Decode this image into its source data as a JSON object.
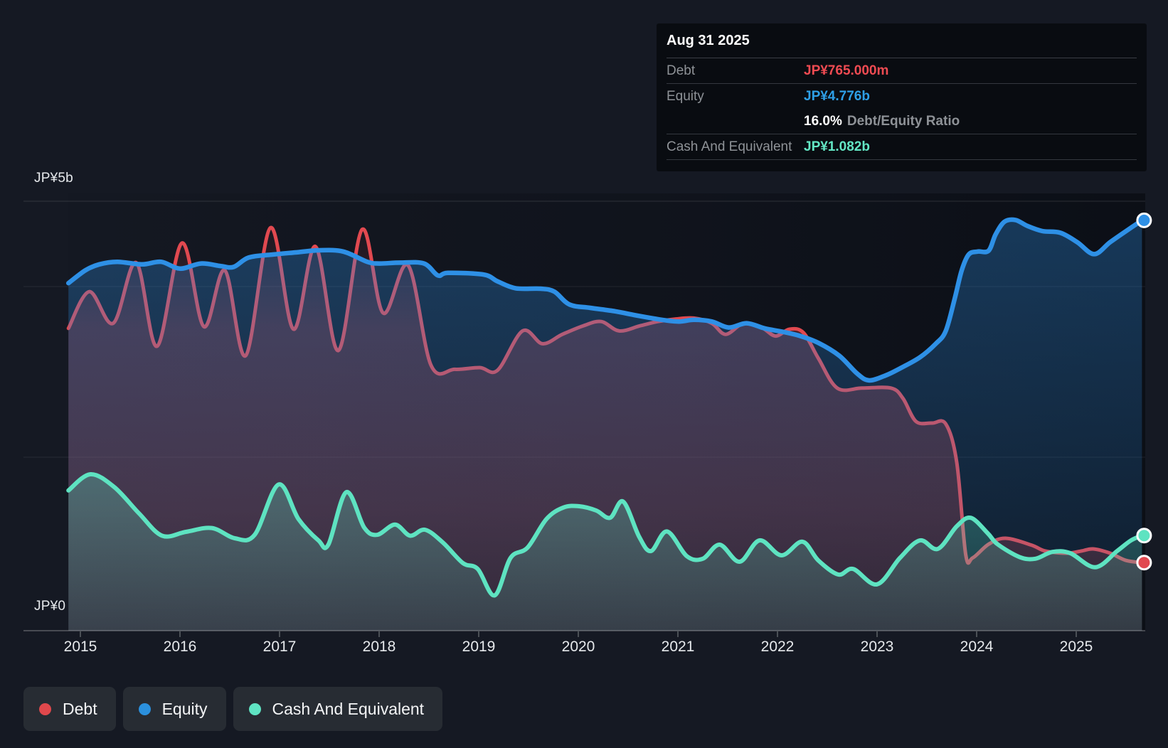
{
  "tooltip": {
    "date": "Aug 31 2025",
    "rows": [
      {
        "label": "Debt",
        "value": "JP¥765.000m",
        "color": "#ef4b52"
      },
      {
        "label": "Equity",
        "value": "JP¥4.776b",
        "color": "#2e9fe6"
      },
      {
        "label": "",
        "value_bold": "16.0%",
        "value_gray": "Debt/Equity Ratio",
        "type": "ratio"
      },
      {
        "label": "Cash And Equivalent",
        "value": "JP¥1.082b",
        "color": "#63e6c4"
      }
    ]
  },
  "legend": [
    {
      "label": "Debt",
      "color": "#e0484c"
    },
    {
      "label": "Equity",
      "color": "#2b90dd"
    },
    {
      "label": "Cash And Equivalent",
      "color": "#5fe4c3"
    }
  ],
  "chart_data": {
    "type": "area",
    "unit": "JP¥ billions",
    "ylim": [
      0,
      5
    ],
    "xlim": [
      2014.88,
      2025.69
    ],
    "grid": "horizontal",
    "gridline_values": [
      5,
      4,
      2
    ],
    "y_axis": {
      "top_label": "JP¥5b",
      "bottom_label": "JP¥0"
    },
    "x_axis": {
      "years": [
        "2015",
        "2016",
        "2017",
        "2018",
        "2019",
        "2020",
        "2021",
        "2022",
        "2023",
        "2024",
        "2025"
      ]
    },
    "legend_position": "bottom-left",
    "series": [
      {
        "name": "Debt",
        "color": "#e14950",
        "final_label": "JP¥765.000m",
        "points": [
          [
            2014.88,
            3.51
          ],
          [
            2015.09,
            3.94
          ],
          [
            2015.33,
            3.57
          ],
          [
            2015.56,
            4.28
          ],
          [
            2015.77,
            3.3
          ],
          [
            2016.02,
            4.51
          ],
          [
            2016.24,
            3.53
          ],
          [
            2016.45,
            4.19
          ],
          [
            2016.66,
            3.19
          ],
          [
            2016.91,
            4.69
          ],
          [
            2017.14,
            3.5
          ],
          [
            2017.36,
            4.47
          ],
          [
            2017.59,
            3.25
          ],
          [
            2017.83,
            4.67
          ],
          [
            2018.04,
            3.69
          ],
          [
            2018.29,
            4.25
          ],
          [
            2018.52,
            3.08
          ],
          [
            2018.76,
            3.03
          ],
          [
            2019.01,
            3.05
          ],
          [
            2019.19,
            3.02
          ],
          [
            2019.44,
            3.48
          ],
          [
            2019.64,
            3.33
          ],
          [
            2019.84,
            3.44
          ],
          [
            2020.05,
            3.54
          ],
          [
            2020.23,
            3.59
          ],
          [
            2020.41,
            3.48
          ],
          [
            2020.62,
            3.54
          ],
          [
            2020.8,
            3.59
          ],
          [
            2020.98,
            3.62
          ],
          [
            2021.16,
            3.63
          ],
          [
            2021.34,
            3.57
          ],
          [
            2021.48,
            3.44
          ],
          [
            2021.66,
            3.57
          ],
          [
            2021.84,
            3.52
          ],
          [
            2021.98,
            3.42
          ],
          [
            2022.12,
            3.5
          ],
          [
            2022.26,
            3.46
          ],
          [
            2022.41,
            3.16
          ],
          [
            2022.6,
            2.81
          ],
          [
            2022.85,
            2.81
          ],
          [
            2023.14,
            2.81
          ],
          [
            2023.26,
            2.69
          ],
          [
            2023.39,
            2.42
          ],
          [
            2023.55,
            2.4
          ],
          [
            2023.69,
            2.39
          ],
          [
            2023.8,
            1.94
          ],
          [
            2023.89,
            0.86
          ],
          [
            2023.96,
            0.82
          ],
          [
            2024.12,
            0.98
          ],
          [
            2024.29,
            1.05
          ],
          [
            2024.55,
            0.97
          ],
          [
            2024.69,
            0.9
          ],
          [
            2024.91,
            0.875
          ],
          [
            2025.05,
            0.9
          ],
          [
            2025.17,
            0.925
          ],
          [
            2025.34,
            0.875
          ],
          [
            2025.5,
            0.79
          ],
          [
            2025.66,
            0.765
          ]
        ]
      },
      {
        "name": "Equity",
        "color": "#2e90e6",
        "final_label": "JP¥4.776b",
        "points": [
          [
            2014.88,
            4.04
          ],
          [
            2015.05,
            4.19
          ],
          [
            2015.19,
            4.26
          ],
          [
            2015.37,
            4.29
          ],
          [
            2015.62,
            4.26
          ],
          [
            2015.81,
            4.29
          ],
          [
            2016.0,
            4.21
          ],
          [
            2016.21,
            4.27
          ],
          [
            2016.41,
            4.24
          ],
          [
            2016.54,
            4.23
          ],
          [
            2016.69,
            4.34
          ],
          [
            2016.93,
            4.375
          ],
          [
            2017.16,
            4.4
          ],
          [
            2017.4,
            4.425
          ],
          [
            2017.64,
            4.41
          ],
          [
            2017.88,
            4.29
          ],
          [
            2018.0,
            4.27
          ],
          [
            2018.21,
            4.28
          ],
          [
            2018.45,
            4.27
          ],
          [
            2018.59,
            4.13
          ],
          [
            2018.69,
            4.16
          ],
          [
            2019.05,
            4.14
          ],
          [
            2019.19,
            4.06
          ],
          [
            2019.37,
            3.98
          ],
          [
            2019.62,
            3.975
          ],
          [
            2019.76,
            3.94
          ],
          [
            2019.91,
            3.79
          ],
          [
            2020.12,
            3.75
          ],
          [
            2020.37,
            3.71
          ],
          [
            2020.59,
            3.66
          ],
          [
            2020.84,
            3.61
          ],
          [
            2021.01,
            3.59
          ],
          [
            2021.16,
            3.61
          ],
          [
            2021.34,
            3.59
          ],
          [
            2021.51,
            3.52
          ],
          [
            2021.69,
            3.57
          ],
          [
            2021.87,
            3.51
          ],
          [
            2022.05,
            3.47
          ],
          [
            2022.23,
            3.42
          ],
          [
            2022.41,
            3.34
          ],
          [
            2022.62,
            3.19
          ],
          [
            2022.8,
            2.98
          ],
          [
            2022.92,
            2.9
          ],
          [
            2023.09,
            2.96
          ],
          [
            2023.23,
            3.04
          ],
          [
            2023.43,
            3.17
          ],
          [
            2023.59,
            3.33
          ],
          [
            2023.69,
            3.48
          ],
          [
            2023.78,
            3.86
          ],
          [
            2023.85,
            4.19
          ],
          [
            2023.92,
            4.375
          ],
          [
            2024.01,
            4.41
          ],
          [
            2024.12,
            4.42
          ],
          [
            2024.19,
            4.61
          ],
          [
            2024.28,
            4.76
          ],
          [
            2024.39,
            4.78
          ],
          [
            2024.51,
            4.71
          ],
          [
            2024.66,
            4.65
          ],
          [
            2024.84,
            4.63
          ],
          [
            2025.01,
            4.52
          ],
          [
            2025.18,
            4.38
          ],
          [
            2025.34,
            4.52
          ],
          [
            2025.5,
            4.65
          ],
          [
            2025.66,
            4.776
          ]
        ]
      },
      {
        "name": "Cash And Equivalent",
        "color": "#5ee3c1",
        "final_label": "JP¥1.082b",
        "points": [
          [
            2014.88,
            1.61
          ],
          [
            2015.1,
            1.8
          ],
          [
            2015.34,
            1.65
          ],
          [
            2015.59,
            1.34
          ],
          [
            2015.82,
            1.08
          ],
          [
            2016.06,
            1.125
          ],
          [
            2016.32,
            1.17
          ],
          [
            2016.55,
            1.05
          ],
          [
            2016.75,
            1.09
          ],
          [
            2016.99,
            1.68
          ],
          [
            2017.19,
            1.275
          ],
          [
            2017.39,
            1.025
          ],
          [
            2017.49,
            0.975
          ],
          [
            2017.67,
            1.59
          ],
          [
            2017.85,
            1.175
          ],
          [
            2017.98,
            1.09
          ],
          [
            2018.16,
            1.21
          ],
          [
            2018.31,
            1.08
          ],
          [
            2018.46,
            1.15
          ],
          [
            2018.64,
            1.0
          ],
          [
            2018.84,
            0.76
          ],
          [
            2018.99,
            0.69
          ],
          [
            2019.16,
            0.38
          ],
          [
            2019.32,
            0.82
          ],
          [
            2019.49,
            0.94
          ],
          [
            2019.68,
            1.275
          ],
          [
            2019.85,
            1.41
          ],
          [
            2020.01,
            1.425
          ],
          [
            2020.18,
            1.375
          ],
          [
            2020.32,
            1.29
          ],
          [
            2020.45,
            1.48
          ],
          [
            2020.61,
            1.07
          ],
          [
            2020.73,
            0.9
          ],
          [
            2020.89,
            1.13
          ],
          [
            2021.09,
            0.84
          ],
          [
            2021.25,
            0.81
          ],
          [
            2021.42,
            0.975
          ],
          [
            2021.62,
            0.775
          ],
          [
            2021.82,
            1.025
          ],
          [
            2022.04,
            0.85
          ],
          [
            2022.25,
            1.01
          ],
          [
            2022.41,
            0.79
          ],
          [
            2022.61,
            0.625
          ],
          [
            2022.76,
            0.69
          ],
          [
            2023.0,
            0.51
          ],
          [
            2023.23,
            0.82
          ],
          [
            2023.43,
            1.025
          ],
          [
            2023.61,
            0.925
          ],
          [
            2023.8,
            1.19
          ],
          [
            2023.94,
            1.29
          ],
          [
            2024.11,
            1.11
          ],
          [
            2024.21,
            0.98
          ],
          [
            2024.43,
            0.83
          ],
          [
            2024.59,
            0.81
          ],
          [
            2024.76,
            0.89
          ],
          [
            2024.94,
            0.875
          ],
          [
            2025.19,
            0.71
          ],
          [
            2025.41,
            0.9
          ],
          [
            2025.55,
            1.025
          ],
          [
            2025.66,
            1.082
          ]
        ]
      }
    ]
  }
}
